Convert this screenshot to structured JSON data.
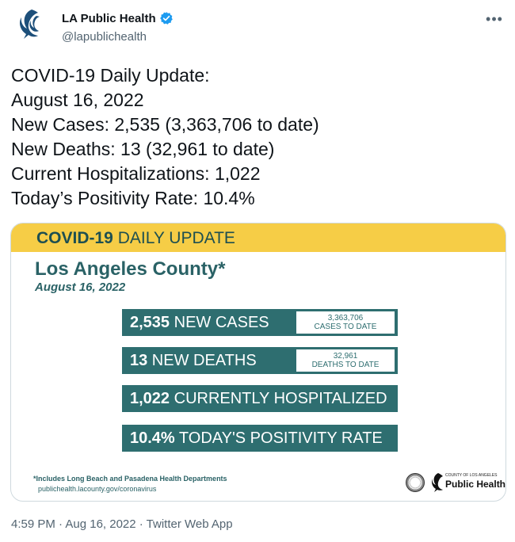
{
  "author": {
    "display_name": "LA Public Health",
    "handle": "@lapublichealth",
    "verified_icon": "verified-badge-icon",
    "brand_color": "#1d9bf0"
  },
  "tweet": {
    "lines": [
      "COVID-19 Daily Update:",
      "August 16, 2022",
      "New Cases: 2,535 (3,363,706 to date)",
      "New Deaths: 13 (32,961 to date)",
      "Current Hospitalizations: 1,022",
      "Today’s Positivity Rate: 10.4%"
    ],
    "timestamp": "4:59 PM · Aug 16, 2022 · Twitter Web App"
  },
  "card": {
    "banner_bold": "COVID-19",
    "banner_rest": " DAILY UPDATE",
    "county": "Los Angeles County*",
    "date": "August 16, 2022",
    "stats": [
      {
        "value": "2,535",
        "label": " NEW CASES",
        "to_date_value": "3,363,706",
        "to_date_label": "CASES TO DATE"
      },
      {
        "value": "13",
        "label": " NEW DEATHS",
        "to_date_value": "32,961",
        "to_date_label": "DEATHS TO DATE"
      },
      {
        "value": "1,022",
        "label": " CURRENTLY HOSPITALIZED"
      },
      {
        "value": "10.4%",
        "label": " TODAY'S POSITIVITY RATE"
      }
    ],
    "footnote": "*Includes Long Beach and Pasadena Health Departments",
    "url": "publichealth.lacounty.gov/coronavirus",
    "logo_small": "COUNTY OF LOS ANGELES",
    "logo_big": "Public Health",
    "colors": {
      "banner": "#f6cd46",
      "teal": "#2e6e70"
    }
  }
}
